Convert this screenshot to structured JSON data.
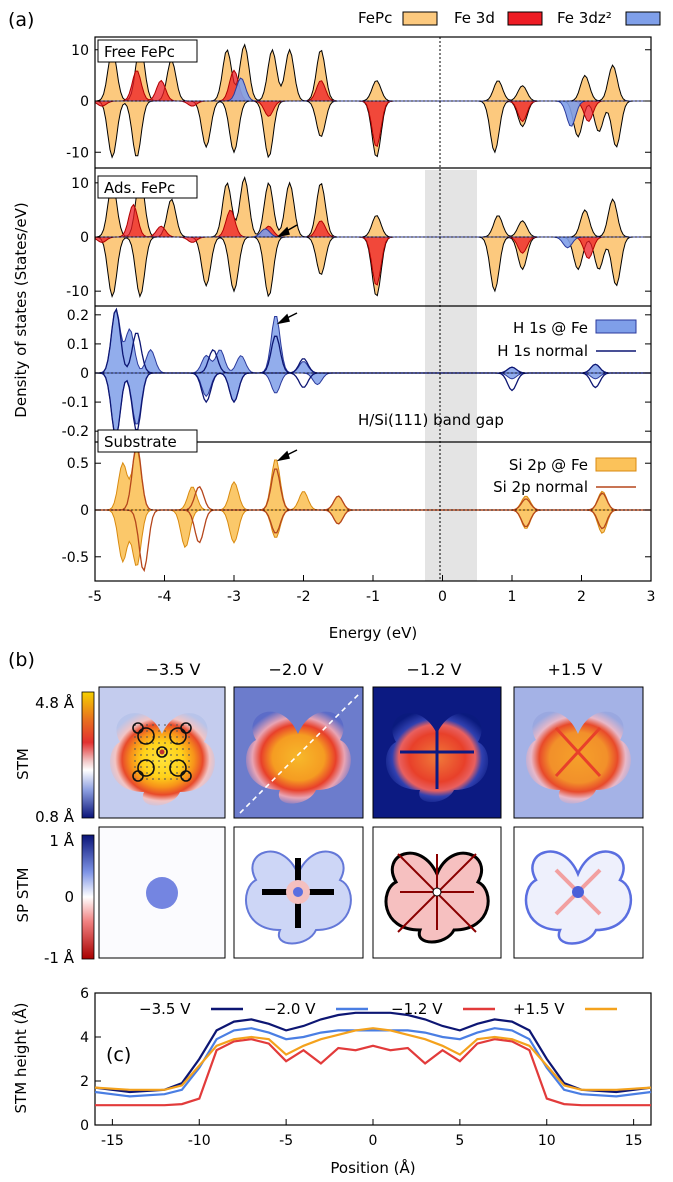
{
  "panel_labels": {
    "a": "(a)",
    "b": "(b)",
    "c": "(c)"
  },
  "legend_a": [
    {
      "name": "FePc",
      "fill": "#fcc97e"
    },
    {
      "name": "Fe 3d",
      "fill": "#ee1c24"
    },
    {
      "name": "Fe 3dz²",
      "fill": "#7f9fe9"
    }
  ],
  "colors": {
    "fepc_fill": "#fcc97e",
    "fe3d_fill": "#ee1c24",
    "fe3dz2_fill": "#7f9fe9",
    "h1s_fill": "#7f9fe9",
    "h1s_line": "#0d1673",
    "si2p_fill": "#fbc25a",
    "si2p_line": "#b5461c",
    "gap_shade": "#e4e4e4",
    "c_series": [
      "#0d1673",
      "#4a7ee3",
      "#e23b3b",
      "#f4a21d"
    ]
  },
  "text": {
    "ylabel_a": "Density of states (States/eV)",
    "xlabel_a": "Energy (eV)",
    "box_free": "Free FePc",
    "box_ads": "Ads. FePc",
    "box_sub": "Substrate",
    "band_gap": "H/Si(111) band gap",
    "h1s_fe": "H 1s @ Fe",
    "h1s_normal": "H 1s normal",
    "si2p_fe": "Si 2p @ Fe",
    "si2p_normal": "Si 2p normal",
    "stm_row": "STM",
    "sp_row": "SP STM",
    "stm_scale_top": "4.8 Å",
    "stm_scale_bot": "0.8 Å",
    "sp_scale_top": "1 Å",
    "sp_scale_mid": "0",
    "sp_scale_bot": "-1 Å",
    "voltages": [
      "−3.5 V",
      "−2.0 V",
      "−1.2 V",
      "+1.5 V"
    ],
    "ylabel_c": "STM height (Å)",
    "xlabel_c": "Position (Å)"
  },
  "chart_data": [
    {
      "type": "area",
      "panel": "(a) Free FePc",
      "x_label": "Energy (eV)",
      "xlim": [
        -5,
        3
      ],
      "ylim": [
        -12,
        12
      ],
      "x_ticks": [
        -5,
        -4,
        -3,
        -2,
        -1,
        0,
        1,
        2,
        3
      ],
      "y_ticks": [
        10,
        0,
        -10
      ],
      "fermi_level": 0,
      "series": [
        {
          "name": "FePc",
          "spin_up_peaks": [
            [
              -4.75,
              10
            ],
            [
              -4.35,
              11
            ],
            [
              -3.9,
              8
            ],
            [
              -3.1,
              10
            ],
            [
              -2.85,
              11
            ],
            [
              -2.45,
              10
            ],
            [
              -2.2,
              10
            ],
            [
              -1.75,
              10
            ],
            [
              -0.95,
              4
            ],
            [
              0.8,
              4
            ],
            [
              1.15,
              3
            ],
            [
              2.05,
              5
            ],
            [
              2.45,
              7
            ]
          ],
          "spin_down_peaks": [
            [
              -4.75,
              -11
            ],
            [
              -4.4,
              -11
            ],
            [
              -3.4,
              -9
            ],
            [
              -3.0,
              -10
            ],
            [
              -2.5,
              -11
            ],
            [
              -1.75,
              -7
            ],
            [
              -0.95,
              -11
            ],
            [
              0.75,
              -10
            ],
            [
              1.15,
              -5
            ],
            [
              1.95,
              -7
            ],
            [
              2.25,
              -6
            ],
            [
              2.5,
              -9
            ]
          ]
        },
        {
          "name": "Fe 3d",
          "spin_up_peaks": [
            [
              -4.4,
              6
            ],
            [
              -4.05,
              4
            ],
            [
              -3.0,
              6
            ],
            [
              -1.75,
              4
            ]
          ],
          "spin_down_peaks": [
            [
              -4.9,
              -1
            ],
            [
              -3.6,
              -1
            ],
            [
              -2.5,
              -3
            ],
            [
              -0.95,
              -9
            ],
            [
              1.15,
              -4
            ],
            [
              2.1,
              -4
            ]
          ]
        },
        {
          "name": "Fe 3dz²",
          "spin_up_peaks": [
            [
              -2.9,
              4.5
            ]
          ],
          "spin_down_peaks": [
            [
              1.85,
              -5
            ]
          ]
        }
      ]
    },
    {
      "type": "area",
      "panel": "(a) Ads. FePc",
      "x_label": "Energy (eV)",
      "xlim": [
        -5,
        3
      ],
      "ylim": [
        -12,
        12
      ],
      "x_ticks": [
        -5,
        -4,
        -3,
        -2,
        -1,
        0,
        1,
        2,
        3
      ],
      "y_ticks": [
        10,
        0,
        -10
      ],
      "band_gap": [
        -0.3,
        0.5
      ],
      "series": [
        {
          "name": "FePc",
          "spin_up_peaks": [
            [
              -4.75,
              10
            ],
            [
              -4.35,
              11
            ],
            [
              -3.9,
              7
            ],
            [
              -3.1,
              10
            ],
            [
              -2.85,
              11
            ],
            [
              -2.5,
              10
            ],
            [
              -2.2,
              10
            ],
            [
              -1.75,
              10
            ],
            [
              -0.95,
              4
            ],
            [
              0.8,
              4
            ],
            [
              1.15,
              3
            ],
            [
              2.05,
              5
            ],
            [
              2.45,
              7
            ]
          ],
          "spin_down_peaks": [
            [
              -4.75,
              -11
            ],
            [
              -4.35,
              -11
            ],
            [
              -3.4,
              -9
            ],
            [
              -3.0,
              -10
            ],
            [
              -2.5,
              -11
            ],
            [
              -1.75,
              -7
            ],
            [
              -0.95,
              -11
            ],
            [
              0.75,
              -10
            ],
            [
              1.15,
              -6
            ],
            [
              1.95,
              -6
            ],
            [
              2.25,
              -6
            ],
            [
              2.5,
              -9
            ]
          ]
        },
        {
          "name": "Fe 3d",
          "spin_up_peaks": [
            [
              -4.45,
              6
            ],
            [
              -4.05,
              2
            ],
            [
              -3.05,
              5
            ],
            [
              -2.5,
              2
            ],
            [
              -1.75,
              3
            ]
          ],
          "spin_down_peaks": [
            [
              -4.9,
              -1
            ],
            [
              -3.6,
              -1
            ],
            [
              -0.95,
              -9
            ],
            [
              1.15,
              -3
            ],
            [
              2.1,
              -4
            ]
          ]
        },
        {
          "name": "Fe 3dz²",
          "spin_up_peaks": [
            [
              -2.55,
              1.5
            ]
          ],
          "spin_down_peaks": [
            [
              1.8,
              -2
            ]
          ]
        }
      ]
    },
    {
      "type": "area",
      "panel": "(a) H 1s",
      "x_label": "Energy (eV)",
      "xlim": [
        -5,
        3
      ],
      "ylim": [
        -0.22,
        0.22
      ],
      "x_ticks": [
        -5,
        -4,
        -3,
        -2,
        -1,
        0,
        1,
        2,
        3
      ],
      "y_ticks": [
        0.2,
        0.1,
        0,
        -0.1,
        -0.2
      ],
      "band_gap": [
        -0.3,
        0.5
      ],
      "series": [
        {
          "name": "H 1s @ Fe",
          "spin_up_peaks": [
            [
              -4.7,
              0.22
            ],
            [
              -4.5,
              0.15
            ],
            [
              -4.2,
              0.08
            ],
            [
              -3.4,
              0.06
            ],
            [
              -3.2,
              0.08
            ],
            [
              -2.9,
              0.06
            ],
            [
              -2.4,
              0.2
            ],
            [
              -2.0,
              0.04
            ],
            [
              1.0,
              0.02
            ],
            [
              2.2,
              0.03
            ]
          ],
          "spin_down_peaks": [
            [
              -4.7,
              -0.22
            ],
            [
              -4.4,
              -0.18
            ],
            [
              -3.4,
              -0.08
            ],
            [
              -3.0,
              -0.1
            ],
            [
              -2.4,
              -0.07
            ],
            [
              -1.8,
              -0.04
            ],
            [
              1.0,
              -0.02
            ],
            [
              2.2,
              -0.02
            ]
          ]
        },
        {
          "name": "H 1s normal",
          "spin_up_peaks": [
            [
              -4.7,
              0.22
            ],
            [
              -4.4,
              0.14
            ],
            [
              -3.3,
              0.08
            ],
            [
              -2.4,
              0.13
            ],
            [
              -2.0,
              0.05
            ],
            [
              1.0,
              0.02
            ],
            [
              2.2,
              0.03
            ]
          ],
          "spin_down_peaks": [
            [
              -4.7,
              -0.22
            ],
            [
              -4.4,
              -0.2
            ],
            [
              -3.4,
              -0.1
            ],
            [
              -3.0,
              -0.1
            ],
            [
              -2.0,
              -0.05
            ],
            [
              1.0,
              -0.06
            ],
            [
              2.2,
              -0.05
            ]
          ]
        }
      ]
    },
    {
      "type": "area",
      "panel": "(a) Substrate",
      "x_label": "Energy (eV)",
      "xlim": [
        -5,
        3
      ],
      "ylim": [
        -0.7,
        0.7
      ],
      "x_ticks": [
        -5,
        -4,
        -3,
        -2,
        -1,
        0,
        1,
        2,
        3
      ],
      "y_ticks": [
        0.5,
        0,
        -0.5
      ],
      "band_gap": [
        -0.3,
        0.5
      ],
      "series": [
        {
          "name": "Si 2p @ Fe",
          "spin_up_peaks": [
            [
              -4.6,
              0.5
            ],
            [
              -4.4,
              0.65
            ],
            [
              -3.6,
              0.25
            ],
            [
              -3.0,
              0.3
            ],
            [
              -2.4,
              0.55
            ],
            [
              -2.0,
              0.2
            ],
            [
              -1.5,
              0.15
            ],
            [
              1.2,
              0.15
            ],
            [
              2.3,
              0.2
            ]
          ],
          "spin_down_peaks": [
            [
              -4.6,
              -0.55
            ],
            [
              -4.4,
              -0.6
            ],
            [
              -3.7,
              -0.4
            ],
            [
              -3.0,
              -0.35
            ],
            [
              -2.4,
              -0.3
            ],
            [
              -1.5,
              -0.15
            ],
            [
              1.2,
              -0.2
            ],
            [
              2.3,
              -0.25
            ]
          ]
        },
        {
          "name": "Si 2p normal",
          "spin_up_peaks": [
            [
              -4.4,
              0.7
            ],
            [
              -3.5,
              0.25
            ],
            [
              -2.4,
              0.45
            ],
            [
              -1.5,
              0.15
            ],
            [
              1.2,
              0.12
            ],
            [
              2.3,
              0.18
            ]
          ],
          "spin_down_peaks": [
            [
              -4.3,
              -0.65
            ],
            [
              -3.5,
              -0.35
            ],
            [
              -2.4,
              -0.25
            ],
            [
              -1.5,
              -0.15
            ],
            [
              1.2,
              -0.18
            ],
            [
              2.3,
              -0.2
            ]
          ]
        }
      ]
    },
    {
      "type": "line",
      "panel": "(c)",
      "x_label": "Position (Å)",
      "y_label": "STM height (Å)",
      "xlim": [
        -16,
        16
      ],
      "ylim": [
        0,
        6
      ],
      "x_ticks": [
        -15,
        -10,
        -5,
        0,
        5,
        10,
        15
      ],
      "y_ticks": [
        0,
        2,
        4,
        6
      ],
      "series": [
        {
          "name": "−3.5 V",
          "x": [
            -16,
            -14,
            -12,
            -11,
            -10,
            -9,
            -8,
            -7,
            -6,
            -5,
            -4,
            -3,
            -2,
            -1,
            0,
            1,
            2,
            3,
            4,
            5,
            6,
            7,
            8,
            9,
            10,
            11,
            12,
            14,
            16
          ],
          "y": [
            1.7,
            1.5,
            1.6,
            1.9,
            3.0,
            4.3,
            4.7,
            4.8,
            4.6,
            4.3,
            4.5,
            4.8,
            5.0,
            5.1,
            5.1,
            5.1,
            5.0,
            4.8,
            4.5,
            4.3,
            4.6,
            4.8,
            4.7,
            4.3,
            3.0,
            1.9,
            1.6,
            1.5,
            1.7
          ]
        },
        {
          "name": "−2.0 V",
          "x": [
            -16,
            -14,
            -12,
            -11,
            -10,
            -9,
            -8,
            -7,
            -6,
            -5,
            -4,
            -3,
            -2,
            -1,
            0,
            1,
            2,
            3,
            4,
            5,
            6,
            7,
            8,
            9,
            10,
            11,
            12,
            14,
            16
          ],
          "y": [
            1.5,
            1.3,
            1.4,
            1.6,
            2.6,
            3.9,
            4.3,
            4.4,
            4.2,
            3.9,
            4.0,
            4.2,
            4.3,
            4.3,
            4.3,
            4.3,
            4.3,
            4.2,
            4.0,
            3.9,
            4.2,
            4.4,
            4.3,
            3.9,
            2.6,
            1.6,
            1.4,
            1.3,
            1.5
          ]
        },
        {
          "name": "−1.2 V",
          "x": [
            -16,
            -14,
            -12,
            -11,
            -10,
            -9,
            -8,
            -7,
            -6,
            -5,
            -4,
            -3,
            -2,
            -1,
            0,
            1,
            2,
            3,
            4,
            5,
            6,
            7,
            8,
            9,
            10,
            11,
            12,
            14,
            16
          ],
          "y": [
            0.9,
            0.9,
            0.9,
            0.95,
            1.2,
            3.4,
            3.8,
            3.9,
            3.7,
            2.9,
            3.4,
            2.8,
            3.5,
            3.4,
            3.6,
            3.4,
            3.5,
            2.8,
            3.4,
            2.9,
            3.7,
            3.9,
            3.8,
            3.4,
            1.2,
            0.95,
            0.9,
            0.9,
            0.9
          ]
        },
        {
          "name": "+1.5 V",
          "x": [
            -16,
            -14,
            -12,
            -11,
            -10,
            -9,
            -8,
            -7,
            -6,
            -5,
            -4,
            -3,
            -2,
            -1,
            0,
            1,
            2,
            3,
            4,
            5,
            6,
            7,
            8,
            9,
            10,
            11,
            12,
            14,
            16
          ],
          "y": [
            1.7,
            1.6,
            1.6,
            1.8,
            2.7,
            3.6,
            3.9,
            4.0,
            3.9,
            3.2,
            3.6,
            3.9,
            4.1,
            4.3,
            4.4,
            4.3,
            4.1,
            3.9,
            3.6,
            3.2,
            3.9,
            4.0,
            3.9,
            3.6,
            2.7,
            1.8,
            1.6,
            1.6,
            1.7
          ]
        }
      ]
    }
  ]
}
